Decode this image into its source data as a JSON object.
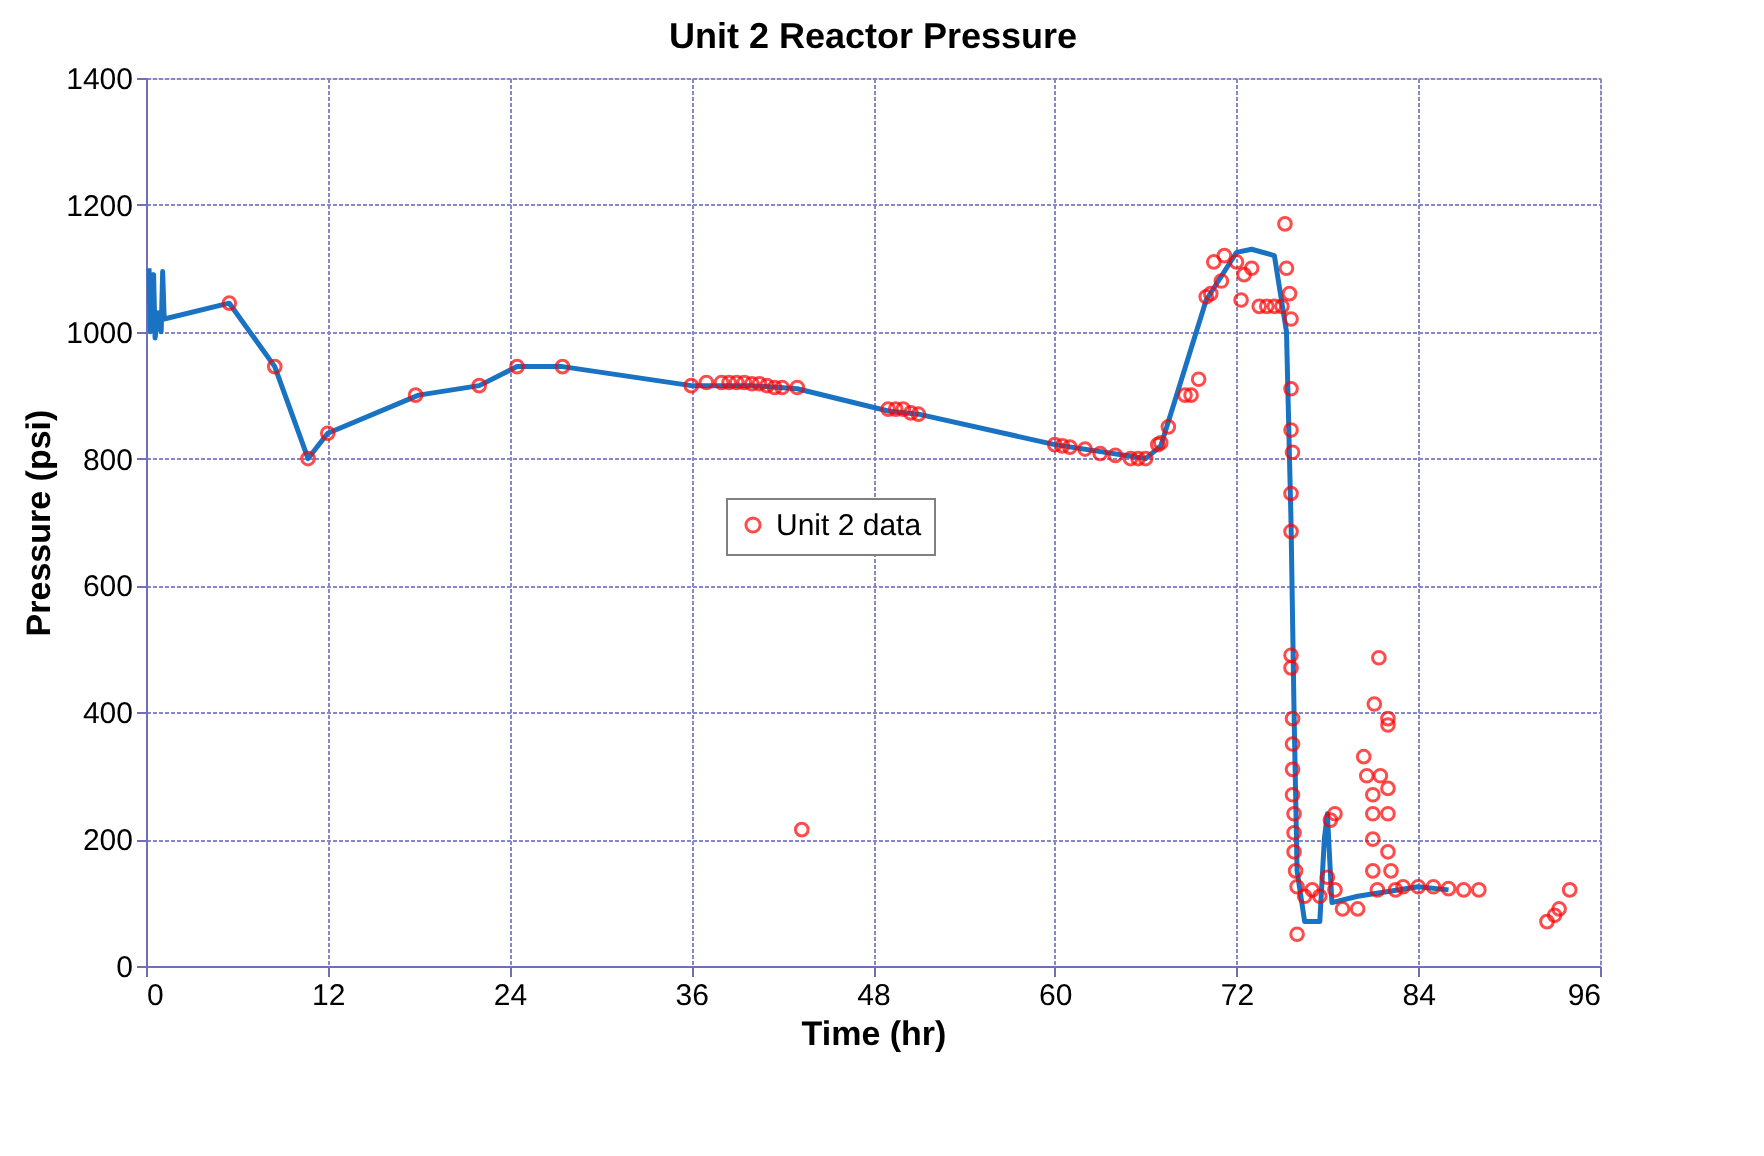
{
  "chart_data": {
    "type": "line",
    "title": "Unit 2 Reactor Pressure",
    "xlabel": "Time (hr)",
    "ylabel": "Pressure (psi)",
    "xlim": [
      0,
      96
    ],
    "xticks": [
      0,
      12,
      24,
      36,
      48,
      60,
      72,
      84,
      96
    ],
    "ylim": [
      0,
      1400
    ],
    "yticks": [
      0,
      200,
      400,
      600,
      800,
      1000,
      1200,
      1400
    ],
    "grid": true,
    "legend": "center",
    "series": [
      {
        "color": "#1a73c2",
        "marker": "none",
        "x": [
          0.2,
          0.3,
          0.5,
          0.6,
          0.8,
          1.0,
          1.1,
          1.2,
          5.5,
          8.5,
          10.7,
          12,
          18,
          22,
          24.5,
          27.5,
          36,
          40,
          43,
          49,
          51,
          60,
          66,
          67,
          70,
          72,
          73,
          74.5,
          75.3,
          75.6,
          75.8,
          76,
          76.5,
          77.5,
          77.8,
          78,
          78.3,
          80,
          84,
          86
        ],
        "values": [
          1100,
          1000,
          1090,
          990,
          1030,
          1000,
          1095,
          1020,
          1045,
          945,
          800,
          840,
          900,
          915,
          945,
          945,
          915,
          915,
          910,
          875,
          870,
          822,
          800,
          820,
          1050,
          1125,
          1130,
          1120,
          1000,
          700,
          400,
          150,
          70,
          70,
          200,
          240,
          100,
          110,
          125,
          120
        ]
      },
      {
        "type": "scatter",
        "name": "Unit 2 data",
        "color": "#ff0000",
        "marker": "circle",
        "x": [
          5.5,
          8.5,
          10.7,
          12,
          17.8,
          22,
          24.5,
          27.5,
          36,
          37,
          38,
          38.5,
          39,
          39.5,
          40,
          40.5,
          41,
          41.5,
          42,
          43,
          43.3,
          49,
          49.5,
          50,
          50.5,
          51,
          60,
          60.5,
          61,
          62,
          63,
          64,
          65,
          65.5,
          66,
          66.8,
          67,
          67.5,
          68.6,
          69,
          69.5,
          70,
          70.3,
          70.5,
          71,
          71.2,
          72,
          72.3,
          72.5,
          73,
          73.5,
          74,
          74.5,
          75,
          75.2,
          75.3,
          75.5,
          75.6,
          75.6,
          75.6,
          75.7,
          75.6,
          75.6,
          75.6,
          75.6,
          75.7,
          75.7,
          75.7,
          75.7,
          75.8,
          75.8,
          75.8,
          75.9,
          76,
          76,
          76.5,
          77,
          77.5,
          78,
          78.2,
          78.5,
          78.5,
          79,
          80,
          80.4,
          80.6,
          81.4,
          81.1,
          81,
          81,
          81,
          81,
          81.3,
          81.5,
          82,
          82,
          82,
          82,
          82,
          82.2,
          82.5,
          83,
          84,
          85,
          86,
          87,
          88,
          92.5,
          93,
          93.3,
          94
        ],
        "values": [
          1045,
          945,
          800,
          840,
          900,
          915,
          945,
          945,
          915,
          920,
          920,
          920,
          920,
          920,
          918,
          918,
          915,
          912,
          912,
          912,
          215,
          878,
          878,
          878,
          872,
          870,
          822,
          820,
          818,
          815,
          808,
          805,
          800,
          800,
          800,
          822,
          825,
          850,
          900,
          900,
          925,
          1055,
          1060,
          1110,
          1080,
          1120,
          1110,
          1050,
          1090,
          1100,
          1040,
          1040,
          1040,
          1040,
          1170,
          1100,
          1060,
          1020,
          910,
          845,
          810,
          745,
          685,
          490,
          470,
          390,
          350,
          310,
          270,
          240,
          210,
          180,
          150,
          125,
          50,
          110,
          120,
          110,
          140,
          230,
          240,
          120,
          90,
          90,
          330,
          300,
          486,
          413,
          270,
          240,
          200,
          150,
          120,
          300,
          390,
          380,
          280,
          240,
          180,
          150,
          120,
          125,
          125,
          125,
          122,
          120,
          120,
          70,
          80,
          90,
          120
        ]
      }
    ]
  }
}
